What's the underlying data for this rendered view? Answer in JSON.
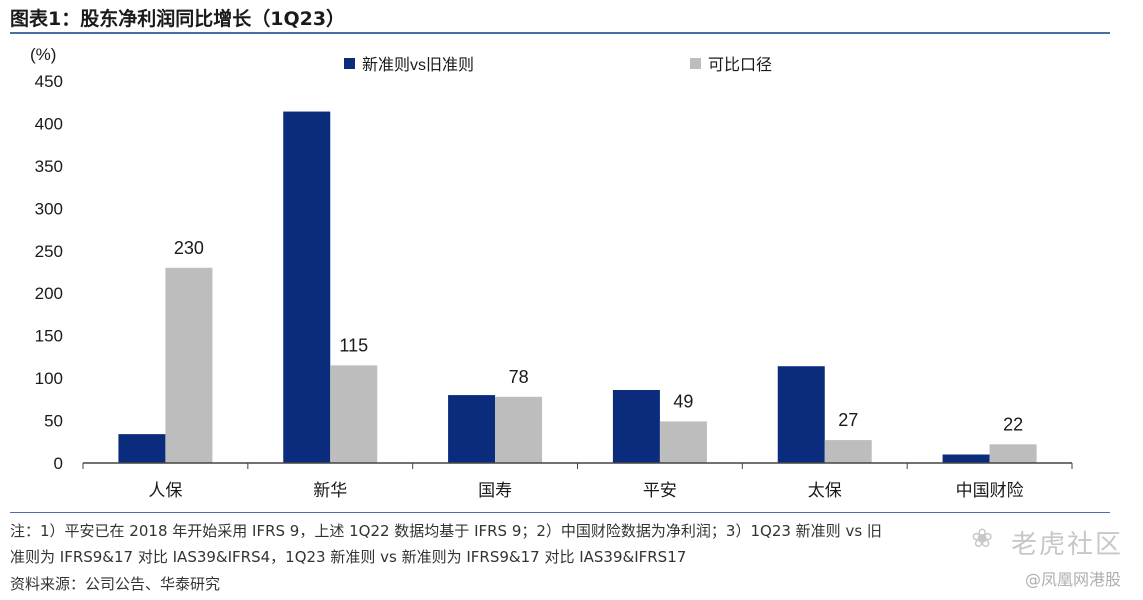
{
  "header": {
    "title": "图表1：股东净利润同比增长（1Q23）"
  },
  "chart_data": {
    "type": "bar",
    "title": "图表1：股东净利润同比增长（1Q23）",
    "ylabel": "(%)",
    "xlabel": "",
    "ylim": [
      0,
      450
    ],
    "yticks": [
      0,
      50,
      100,
      150,
      200,
      250,
      300,
      350,
      400,
      450
    ],
    "categories": [
      "人保",
      "新华",
      "国寿",
      "平安",
      "太保",
      "中国财险"
    ],
    "series": [
      {
        "name": "新准则vs旧准则",
        "color": "#0b2c7c",
        "values": [
          34,
          414,
          80,
          86,
          114,
          10
        ],
        "labels": [
          "",
          "",
          "",
          "",
          "",
          ""
        ]
      },
      {
        "name": "可比口径",
        "color": "#bdbdbd",
        "values": [
          230,
          115,
          78,
          49,
          27,
          22
        ],
        "labels": [
          "230",
          "115",
          "78",
          "49",
          "27",
          "22"
        ]
      }
    ],
    "legend": "top-center",
    "grid": false
  },
  "notes": {
    "line1": "注：1）平安已在 2018 年开始采用 IFRS 9，上述 1Q22 数据均基于 IFRS 9；2）中国财险数据为净利润；3）1Q23 新准则 vs 旧",
    "line2": "准则为 IFRS9&17 对比 IAS39&IFRS4，1Q23 新准则 vs 新准则为 IFRS9&17 对比 IAS39&IFRS17",
    "source": "资料来源：公司公告、华泰研究"
  },
  "watermark": {
    "brand": "老虎社区",
    "handle": "@凤凰网港股",
    "icon": "paw-icon"
  }
}
